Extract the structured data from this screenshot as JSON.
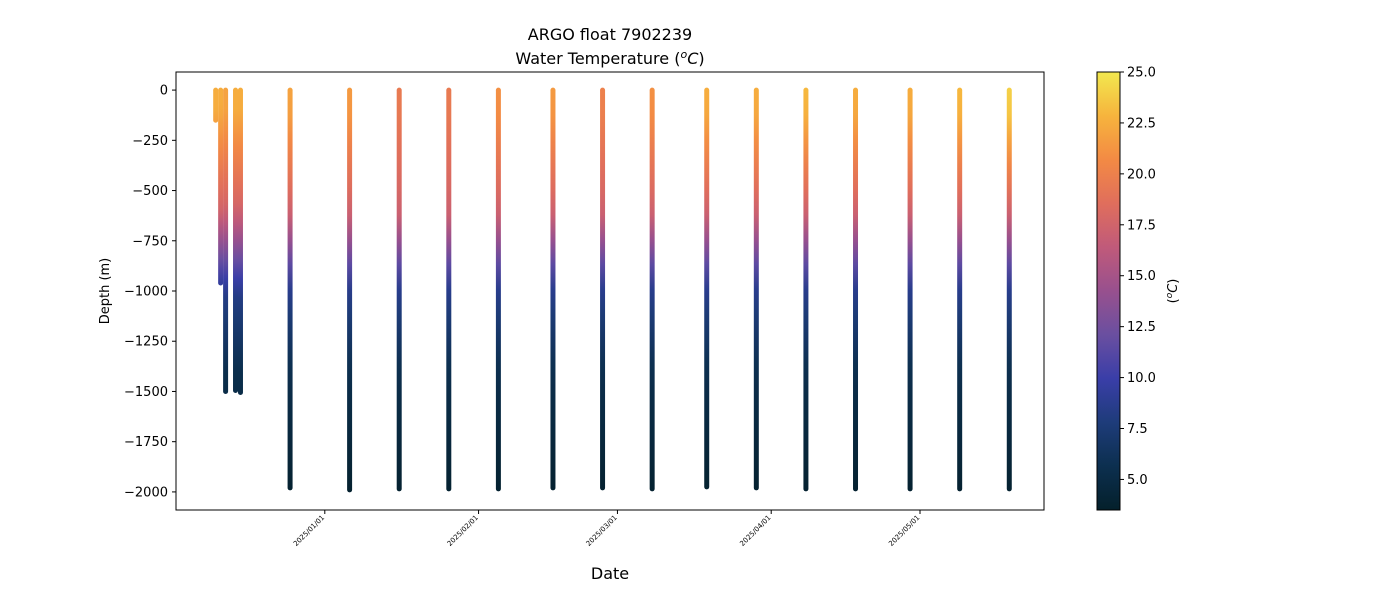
{
  "chart_data": {
    "type": "scatter",
    "title": "ARGO float 7902239",
    "subtitle_prefix": "Water Temperature (",
    "subtitle_unit_sup": "o",
    "subtitle_unit": "C",
    "subtitle_suffix": ")",
    "xlabel": "Date",
    "ylabel": "Depth (m)",
    "colorbar_label_sup": "o",
    "colorbar_label_unit": "C",
    "ylim": [
      -2090,
      90
    ],
    "xlim": [
      "2024-12-02",
      "2025-05-26"
    ],
    "yticks": [
      0,
      -250,
      -500,
      -750,
      -1000,
      -1250,
      -1500,
      -1750,
      -2000
    ],
    "ytick_labels": [
      "0",
      "−250",
      "−500",
      "−750",
      "−1000",
      "−1250",
      "−1500",
      "−1750",
      "−2000"
    ],
    "xticks": [
      "2025-01-01",
      "2025-02-01",
      "2025-03-01",
      "2025-04-01",
      "2025-05-01"
    ],
    "xtick_labels": [
      "2025/01/01",
      "2025/02/01",
      "2025/03/01",
      "2025/04/01",
      "2025/05/01"
    ],
    "colorbar": {
      "range": [
        3.5,
        25.0
      ],
      "ticks": [
        5.0,
        7.5,
        10.0,
        12.5,
        15.0,
        17.5,
        20.0,
        22.5,
        25.0
      ],
      "tick_labels": [
        "5.0",
        "7.5",
        "10.0",
        "12.5",
        "15.0",
        "17.5",
        "20.0",
        "22.5",
        "25.0"
      ],
      "colormap": "thermal",
      "colors": [
        "#04202b",
        "#0c2f4f",
        "#1e3c7a",
        "#3a3ea8",
        "#6a4fa0",
        "#98508e",
        "#c05a7a",
        "#e06e5c",
        "#f38a44",
        "#f6b43d",
        "#f2e84f"
      ]
    },
    "grid": false,
    "profiles": [
      {
        "date": "2024-12-10",
        "max_depth": -150,
        "surface_temp": 22.5
      },
      {
        "date": "2024-12-11",
        "max_depth": -960,
        "surface_temp": 22.5
      },
      {
        "date": "2024-12-12",
        "max_depth": -1500,
        "surface_temp": 22.0
      },
      {
        "date": "2024-12-14",
        "max_depth": -1495,
        "surface_temp": 22.5
      },
      {
        "date": "2024-12-15",
        "max_depth": -1505,
        "surface_temp": 22.5
      },
      {
        "date": "2024-12-25",
        "max_depth": -1980,
        "surface_temp": 22.0
      },
      {
        "date": "2025-01-06",
        "max_depth": -1990,
        "surface_temp": 21.5
      },
      {
        "date": "2025-01-16",
        "max_depth": -1985,
        "surface_temp": 19.5
      },
      {
        "date": "2025-01-26",
        "max_depth": -1985,
        "surface_temp": 19.5
      },
      {
        "date": "2025-02-05",
        "max_depth": -1985,
        "surface_temp": 21.0
      },
      {
        "date": "2025-02-16",
        "max_depth": -1980,
        "surface_temp": 21.5
      },
      {
        "date": "2025-02-26",
        "max_depth": -1980,
        "surface_temp": 20.0
      },
      {
        "date": "2025-03-08",
        "max_depth": -1985,
        "surface_temp": 21.0
      },
      {
        "date": "2025-03-19",
        "max_depth": -1975,
        "surface_temp": 22.5
      },
      {
        "date": "2025-03-29",
        "max_depth": -1980,
        "surface_temp": 22.5
      },
      {
        "date": "2025-04-08",
        "max_depth": -1985,
        "surface_temp": 23.0
      },
      {
        "date": "2025-04-18",
        "max_depth": -1985,
        "surface_temp": 22.5
      },
      {
        "date": "2025-04-29",
        "max_depth": -1985,
        "surface_temp": 22.5
      },
      {
        "date": "2025-05-09",
        "max_depth": -1985,
        "surface_temp": 23.0
      },
      {
        "date": "2025-05-19",
        "max_depth": -1985,
        "surface_temp": 24.0
      }
    ]
  }
}
